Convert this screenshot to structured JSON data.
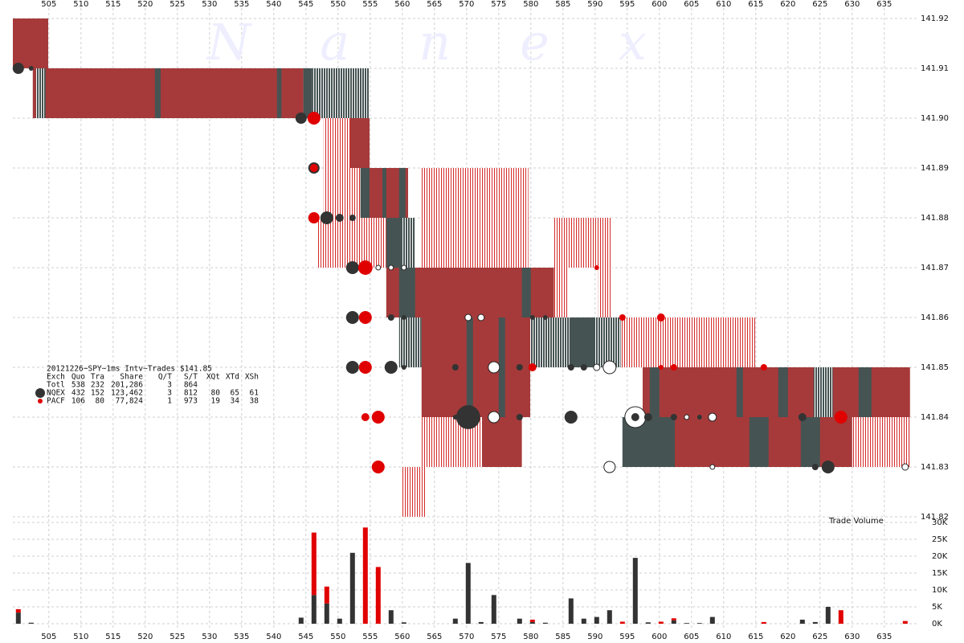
{
  "chart_data": {
    "type": "nanex-tick",
    "title": "20121226~SPY~1ms Intv~Trades $141.85",
    "watermark": "Nanex",
    "volume_label": "Trade Volume",
    "xlim": [
      499.4,
      639.9
    ],
    "xticks": [
      505,
      510,
      515,
      520,
      525,
      530,
      535,
      540,
      545,
      550,
      555,
      560,
      565,
      570,
      575,
      580,
      585,
      590,
      595,
      600,
      605,
      610,
      615,
      620,
      625,
      630,
      635
    ],
    "ylim": [
      141.82,
      141.92
    ],
    "yticks": [
      141.82,
      141.83,
      141.84,
      141.85,
      141.86,
      141.87,
      141.88,
      141.89,
      {
        "value": 141.9,
        "label": "141.90"
      },
      141.91,
      141.92
    ],
    "grid": true,
    "series": [
      {
        "name": "NQEX",
        "color": "#333333"
      },
      {
        "name": "PACF",
        "color": "#e00000"
      }
    ],
    "stats": {
      "header": [
        "Exch",
        "Quo",
        "Tra",
        "Share",
        "Q/T",
        "S/T",
        "XQt",
        "XTd",
        "XSh"
      ],
      "total": [
        "Totl",
        "538",
        "232",
        "201,286",
        "3",
        "864"
      ],
      "rows": [
        [
          "432",
          "152",
          "123,462",
          "3",
          "812",
          "80",
          "65",
          "61"
        ],
        [
          "106",
          "80",
          "77,824",
          "1",
          "973",
          "19",
          "34",
          "38"
        ]
      ]
    },
    "quote_styles": {
      "red": "#a63a3a",
      "dark": "#465353",
      "stripe": "#d42a2a",
      "mixed": "#465353"
    },
    "quotes": [
      {
        "x": [
          499.4,
          504.9
        ],
        "price": [
          141.91,
          141.92
        ],
        "style": "red"
      },
      {
        "x": [
          502.5,
          544.6
        ],
        "price": [
          141.9,
          141.91
        ],
        "style": "red"
      },
      {
        "x": [
          503.0,
          504.5
        ],
        "price": [
          141.9,
          141.91
        ],
        "style": "mixed"
      },
      {
        "x": [
          521.5,
          522.4
        ],
        "price": [
          141.9,
          141.91
        ],
        "style": "dark"
      },
      {
        "x": [
          540.5,
          541.2
        ],
        "price": [
          141.9,
          141.91
        ],
        "style": "dark"
      },
      {
        "x": [
          544.6,
          546.0
        ],
        "price": [
          141.9,
          141.91
        ],
        "style": "dark"
      },
      {
        "x": [
          546.0,
          554.9
        ],
        "price": [
          141.9,
          141.91
        ],
        "style": "mixed"
      },
      {
        "x": [
          547.75,
          551.9
        ],
        "price": [
          141.89,
          141.9
        ],
        "style": "stripe"
      },
      {
        "x": [
          551.9,
          554.9
        ],
        "price": [
          141.89,
          141.9
        ],
        "style": "red"
      },
      {
        "x": [
          547.75,
          553.5
        ],
        "price": [
          141.88,
          141.89
        ],
        "style": "stripe"
      },
      {
        "x": [
          553.5,
          560.9
        ],
        "price": [
          141.88,
          141.89
        ],
        "style": "red"
      },
      {
        "x": [
          553.5,
          554.9
        ],
        "price": [
          141.88,
          141.89
        ],
        "style": "dark"
      },
      {
        "x": [
          556.9,
          557.5
        ],
        "price": [
          141.88,
          141.89
        ],
        "style": "dark"
      },
      {
        "x": [
          559.5,
          560.5
        ],
        "price": [
          141.88,
          141.89
        ],
        "style": "dark"
      },
      {
        "x": [
          546.8,
          557.5
        ],
        "price": [
          141.87,
          141.88
        ],
        "style": "stripe"
      },
      {
        "x": [
          557.5,
          562.0
        ],
        "price": [
          141.87,
          141.88
        ],
        "style": "dark"
      },
      {
        "x": [
          560.0,
          562.0
        ],
        "price": [
          141.86,
          141.88
        ],
        "style": "mixed"
      },
      {
        "x": [
          563.0,
          579.6
        ],
        "price": [
          141.87,
          141.89
        ],
        "style": "stripe"
      },
      {
        "x": [
          583.6,
          592.6
        ],
        "price": [
          141.87,
          141.88
        ],
        "style": "stripe"
      },
      {
        "x": [
          583.6,
          585.9
        ],
        "price": [
          141.85,
          141.87
        ],
        "style": "stripe"
      },
      {
        "x": [
          590.5,
          592.6
        ],
        "price": [
          141.85,
          141.87
        ],
        "style": "stripe"
      },
      {
        "x": [
          557.5,
          583.6
        ],
        "price": [
          141.86,
          141.87
        ],
        "style": "red"
      },
      {
        "x": [
          559.5,
          562.0
        ],
        "price": [
          141.86,
          141.87
        ],
        "style": "dark"
      },
      {
        "x": [
          578.6,
          580.0
        ],
        "price": [
          141.86,
          141.87
        ],
        "style": "dark"
      },
      {
        "x": [
          559.5,
          563.0
        ],
        "price": [
          141.85,
          141.86
        ],
        "style": "mixed"
      },
      {
        "x": [
          563.0,
          579.9
        ],
        "price": [
          141.84,
          141.86
        ],
        "style": "red"
      },
      {
        "x": [
          570.0,
          571.0
        ],
        "price": [
          141.84,
          141.86
        ],
        "style": "dark"
      },
      {
        "x": [
          575.0,
          576.0
        ],
        "price": [
          141.84,
          141.86
        ],
        "style": "dark"
      },
      {
        "x": [
          579.9,
          594.0
        ],
        "price": [
          141.85,
          141.86
        ],
        "style": "mixed"
      },
      {
        "x": [
          586.0,
          590.0
        ],
        "price": [
          141.85,
          141.86
        ],
        "style": "dark"
      },
      {
        "x": [
          594.0,
          614.9
        ],
        "price": [
          141.85,
          141.86
        ],
        "style": "stripe"
      },
      {
        "x": [
          597.4,
          617.4
        ],
        "price": [
          141.84,
          141.85
        ],
        "style": "red"
      },
      {
        "x": [
          598.5,
          600.0
        ],
        "price": [
          141.84,
          141.85
        ],
        "style": "dark"
      },
      {
        "x": [
          612.0,
          613.0
        ],
        "price": [
          141.84,
          141.85
        ],
        "style": "dark"
      },
      {
        "x": [
          617.4,
          639.0
        ],
        "price": [
          141.84,
          141.85
        ],
        "style": "red"
      },
      {
        "x": [
          618.5,
          620.0
        ],
        "price": [
          141.84,
          141.85
        ],
        "style": "dark"
      },
      {
        "x": [
          624.0,
          627.0
        ],
        "price": [
          141.84,
          141.85
        ],
        "style": "mixed"
      },
      {
        "x": [
          631.0,
          633.0
        ],
        "price": [
          141.84,
          141.85
        ],
        "style": "dark"
      },
      {
        "x": [
          563.0,
          572.4
        ],
        "price": [
          141.83,
          141.84
        ],
        "style": "stripe"
      },
      {
        "x": [
          572.4,
          578.6
        ],
        "price": [
          141.83,
          141.84
        ],
        "style": "red"
      },
      {
        "x": [
          594.25,
          602.4
        ],
        "price": [
          141.83,
          141.84
        ],
        "style": "dark"
      },
      {
        "x": [
          602.4,
          639.0
        ],
        "price": [
          141.83,
          141.84
        ],
        "style": "red"
      },
      {
        "x": [
          614.0,
          617.0
        ],
        "price": [
          141.83,
          141.84
        ],
        "style": "dark"
      },
      {
        "x": [
          622.0,
          625.0
        ],
        "price": [
          141.83,
          141.84
        ],
        "style": "dark"
      },
      {
        "x": [
          630.0,
          639.0
        ],
        "price": [
          141.83,
          141.84
        ],
        "style": "stripe"
      },
      {
        "x": [
          559.9,
          563.6
        ],
        "price": [
          141.82,
          141.83
        ],
        "style": "stripe"
      }
    ],
    "trades": {
      "x": [
        500.25,
        502.25,
        544.25,
        546.25,
        546.25,
        546.25,
        546.25,
        548.25,
        550.25,
        552.25,
        552.25,
        554.25,
        556.25,
        558.25,
        560.25,
        552.25,
        554.25,
        558.25,
        560.25,
        570.25,
        572.25,
        580.25,
        582.25,
        590.25,
        594.25,
        600.25,
        552.25,
        554.25,
        558.25,
        560.25,
        568.25,
        574.25,
        578.25,
        580.25,
        586.25,
        588.25,
        590.25,
        592.25,
        600.25,
        602.25,
        616.25,
        554.25,
        556.25,
        568.25,
        570.25,
        574.25,
        578.25,
        586.25,
        596.25,
        596.25,
        598.25,
        602.25,
        604.25,
        606.25,
        608.25,
        622.25,
        628.25,
        556.25,
        592.25,
        608.25,
        624.25,
        626.25,
        638.25
      ],
      "y": [
        141.91,
        141.91,
        141.9,
        141.9,
        141.89,
        141.89,
        141.88,
        141.88,
        141.88,
        141.88,
        141.87,
        141.87,
        141.87,
        141.87,
        141.87,
        141.86,
        141.86,
        141.86,
        141.86,
        141.86,
        141.86,
        141.86,
        141.86,
        141.87,
        141.86,
        141.86,
        141.85,
        141.85,
        141.85,
        141.85,
        141.85,
        141.85,
        141.85,
        141.85,
        141.85,
        141.85,
        141.85,
        141.85,
        141.85,
        141.85,
        141.85,
        141.84,
        141.84,
        141.84,
        141.84,
        141.84,
        141.84,
        141.84,
        141.84,
        141.84,
        141.84,
        141.84,
        141.84,
        141.84,
        141.84,
        141.84,
        141.84,
        141.83,
        141.83,
        141.83,
        141.83,
        141.83,
        141.83
      ],
      "size": [
        4000,
        700,
        4000,
        5200,
        4000,
        2000,
        4000,
        5200,
        2000,
        1300,
        5200,
        6500,
        700,
        700,
        700,
        5200,
        5200,
        1300,
        700,
        1300,
        1300,
        700,
        700,
        700,
        1300,
        2000,
        5200,
        5200,
        5200,
        700,
        1300,
        4000,
        1300,
        2000,
        1300,
        1300,
        1300,
        5200,
        700,
        1300,
        1300,
        2000,
        5200,
        700,
        18000,
        4000,
        1300,
        5200,
        13700,
        2000,
        2000,
        1300,
        700,
        700,
        2000,
        2000,
        5200,
        5200,
        4000,
        700,
        1300,
        5200,
        1300
      ],
      "color": [
        "#333333",
        "#333333",
        "#333333",
        "#e00000",
        "#333333",
        "#e00000",
        "#e00000",
        "#333333",
        "#333333",
        "#333333",
        "#333333",
        "#e00000",
        "#ffffff",
        "#ffffff",
        "#ffffff",
        "#333333",
        "#e00000",
        "#333333",
        "#333333",
        "#ffffff",
        "#ffffff",
        "#333333",
        "#333333",
        "#e00000",
        "#e00000",
        "#e00000",
        "#333333",
        "#e00000",
        "#333333",
        "#333333",
        "#333333",
        "#ffffff",
        "#333333",
        "#e00000",
        "#333333",
        "#333333",
        "#ffffff",
        "#ffffff",
        "#e00000",
        "#e00000",
        "#e00000",
        "#e00000",
        "#e00000",
        "#333333",
        "#333333",
        "#ffffff",
        "#333333",
        "#333333",
        "#ffffff",
        "#333333",
        "#333333",
        "#333333",
        "#ffffff",
        "#333333",
        "#ffffff",
        "#333333",
        "#e00000",
        "#e00000",
        "#ffffff",
        "#ffffff",
        "#333333",
        "#333333",
        "#ffffff"
      ]
    },
    "volume": {
      "ylim": [
        0,
        30000
      ],
      "yticks": [
        {
          "value": 0,
          "label": "0K"
        },
        {
          "value": 5000,
          "label": "5K"
        },
        {
          "value": 10000,
          "label": "10K"
        },
        {
          "value": 15000,
          "label": "15K"
        },
        {
          "value": 20000,
          "label": "20K"
        },
        {
          "value": 25000,
          "label": "25K"
        },
        {
          "value": 30000,
          "label": "30K"
        }
      ],
      "x": [
        500.25,
        502.25,
        544.25,
        546.25,
        548.25,
        550.25,
        552.25,
        554.25,
        556.25,
        558.25,
        560.25,
        568.25,
        570.25,
        572.25,
        574.25,
        578.25,
        580.25,
        582.25,
        586.25,
        588.25,
        590.25,
        592.25,
        594.25,
        596.25,
        598.25,
        600.25,
        602.25,
        604.25,
        606.25,
        608.25,
        616.25,
        622.25,
        624.25,
        626.25,
        628.25,
        638.25
      ],
      "series": [
        {
          "name": "NQEX",
          "color": "#333333",
          "values": [
            3300,
            300,
            1800,
            8500,
            6000,
            1500,
            21000,
            0,
            0,
            4000,
            400,
            1500,
            18000,
            500,
            8500,
            1500,
            500,
            300,
            7500,
            1500,
            2000,
            4000,
            0,
            19500,
            400,
            0,
            1000,
            200,
            200,
            2000,
            0,
            1200,
            500,
            5000,
            0,
            0
          ]
        },
        {
          "name": "PACF",
          "color": "#e00000",
          "values": [
            1000,
            0,
            0,
            18500,
            5000,
            0,
            0,
            28500,
            16800,
            0,
            0,
            0,
            0,
            0,
            0,
            0,
            700,
            0,
            0,
            0,
            0,
            0,
            600,
            0,
            0,
            600,
            600,
            0,
            0,
            0,
            500,
            0,
            0,
            0,
            4000,
            800
          ]
        }
      ]
    }
  }
}
